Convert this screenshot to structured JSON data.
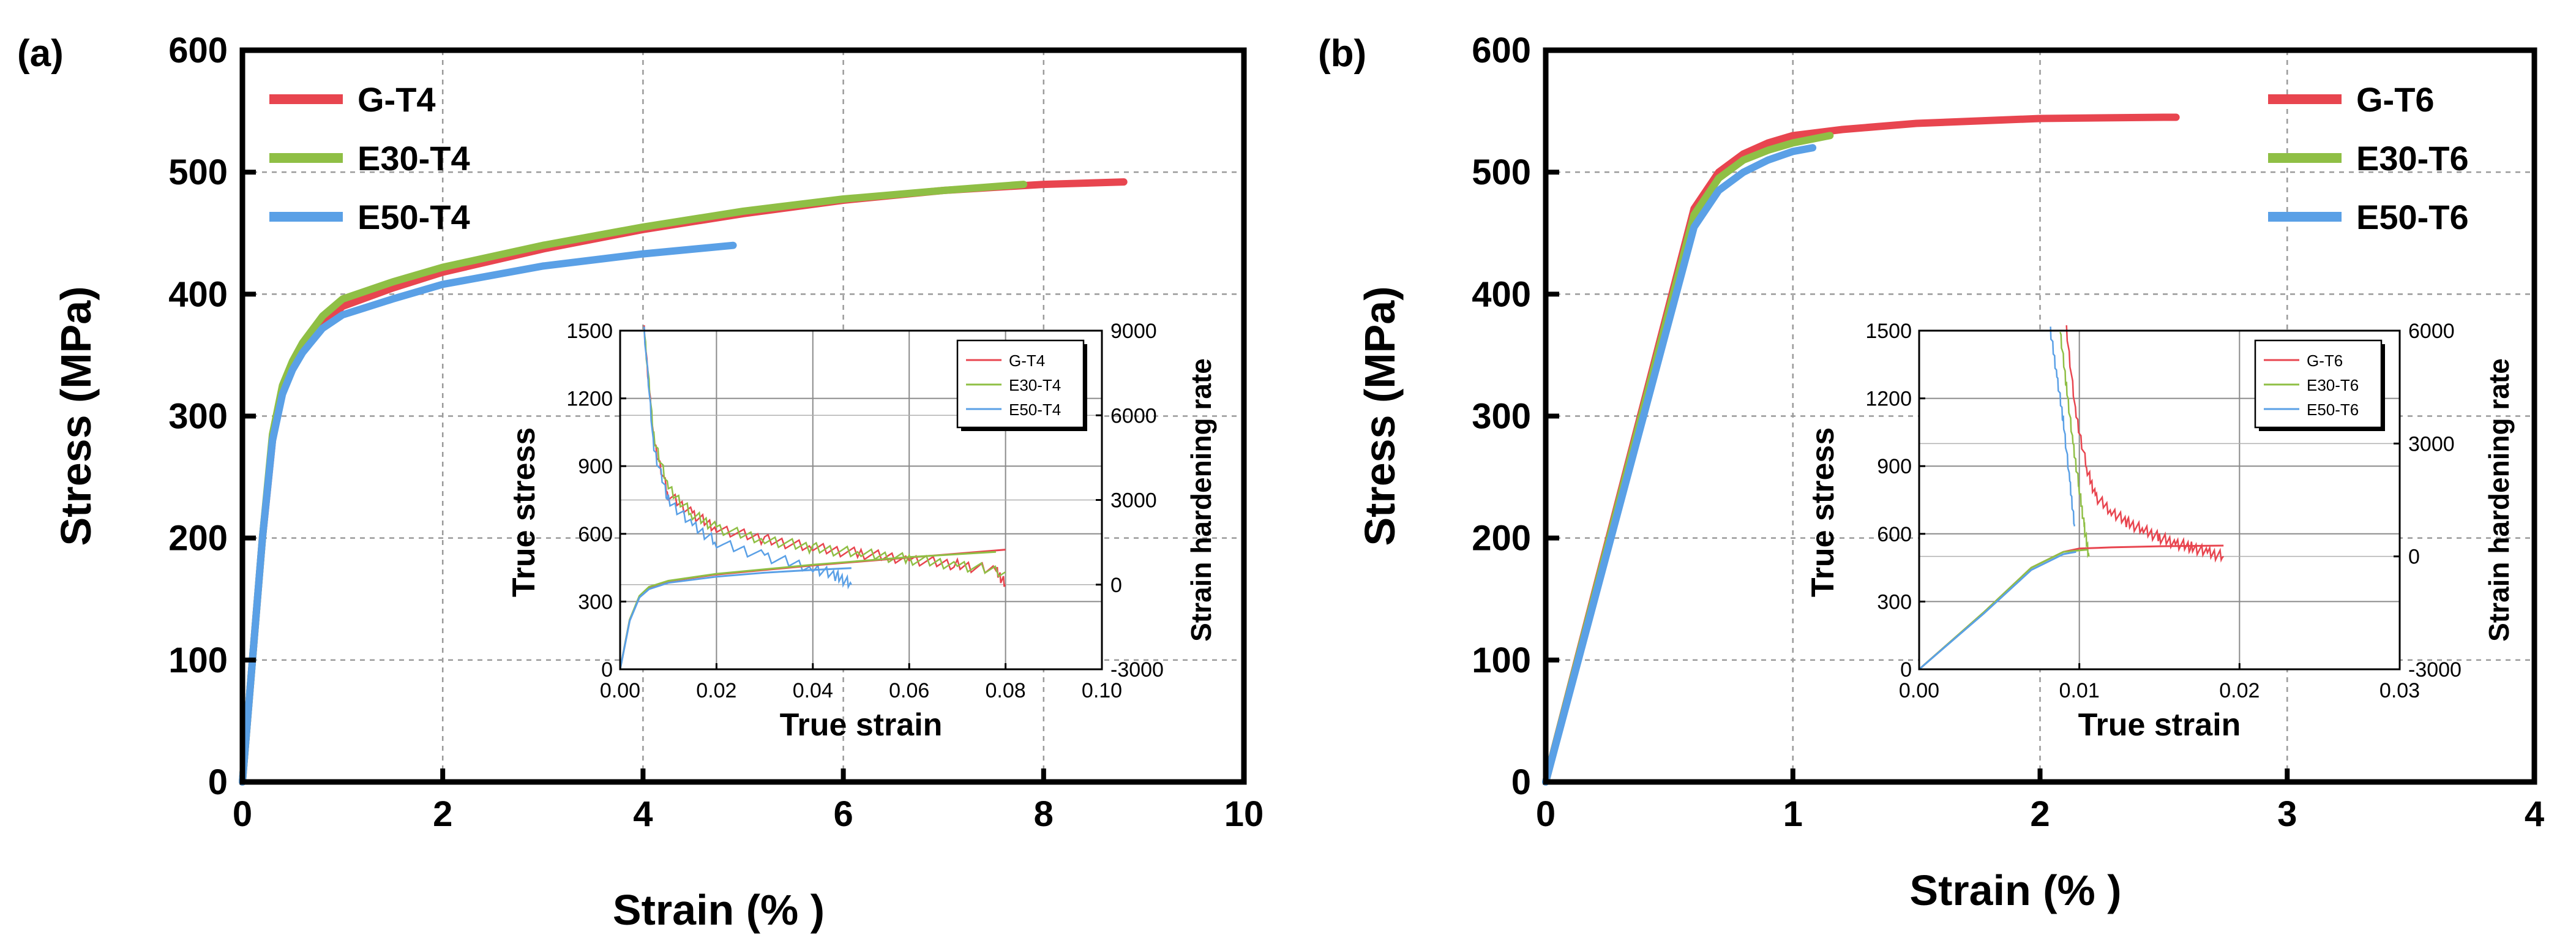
{
  "colors": {
    "red": "#e8454f",
    "green": "#8fbf45",
    "blue": "#5aa0e6"
  },
  "chart_data": [
    {
      "type": "line",
      "panel_label": "(a)",
      "xlabel": "Strain (% )",
      "ylabel": "Stress (MPa)",
      "xlim": [
        0,
        10
      ],
      "ylim": [
        0,
        600
      ],
      "xticks": [
        "0",
        "2",
        "4",
        "6",
        "8",
        "10"
      ],
      "yticks": [
        "0",
        "100",
        "200",
        "300",
        "400",
        "500",
        "600"
      ],
      "grid": true,
      "legend_position": "top-left",
      "series": [
        {
          "name": "G-T4",
          "color": "red",
          "x": [
            0,
            0.1,
            0.2,
            0.3,
            0.4,
            0.5,
            0.6,
            0.8,
            1.0,
            1.5,
            2,
            3,
            4,
            5,
            6,
            7,
            8,
            8.8
          ],
          "y": [
            0,
            100,
            200,
            280,
            320,
            340,
            355,
            375,
            390,
            405,
            418,
            437,
            453,
            466,
            477,
            485,
            490,
            492
          ]
        },
        {
          "name": "E30-T4",
          "color": "green",
          "x": [
            0,
            0.1,
            0.2,
            0.3,
            0.4,
            0.5,
            0.6,
            0.8,
            1.0,
            1.5,
            2,
            3,
            4,
            5,
            6,
            7,
            7.8
          ],
          "y": [
            0,
            100,
            200,
            285,
            325,
            345,
            360,
            382,
            396,
            410,
            422,
            440,
            455,
            468,
            478,
            485,
            490
          ]
        },
        {
          "name": "E50-T4",
          "color": "blue",
          "x": [
            0,
            0.1,
            0.2,
            0.3,
            0.4,
            0.5,
            0.6,
            0.8,
            1.0,
            1.5,
            2,
            3,
            4,
            4.9
          ],
          "y": [
            0,
            100,
            200,
            280,
            318,
            338,
            352,
            372,
            383,
            396,
            408,
            423,
            433,
            440
          ]
        }
      ],
      "inset": {
        "xlabel": "True strain",
        "ylabel": "True stress",
        "y2label": "Strain hardening rate",
        "xlim": [
          0,
          0.1
        ],
        "ylim": [
          0,
          1500
        ],
        "y2lim": [
          -3000,
          9000
        ],
        "xticks": [
          "0.00",
          "0.02",
          "0.04",
          "0.06",
          "0.08",
          "0.10"
        ],
        "yticks": [
          "0",
          "300",
          "600",
          "900",
          "1200",
          "1500"
        ],
        "y2ticks": [
          "-3000",
          "0",
          "3000",
          "6000",
          "9000"
        ],
        "legend": [
          "G-T4",
          "E30-T4",
          "E50-T4"
        ],
        "stress": [
          {
            "name": "G-T4",
            "x": [
              0,
              0.002,
              0.004,
              0.006,
              0.01,
              0.02,
              0.04,
              0.06,
              0.08
            ],
            "y": [
              0,
              220,
              320,
              360,
              390,
              420,
              460,
              495,
              530
            ]
          },
          {
            "name": "E30-T4",
            "x": [
              0,
              0.002,
              0.004,
              0.006,
              0.01,
              0.02,
              0.04,
              0.06,
              0.078
            ],
            "y": [
              0,
              220,
              325,
              365,
              392,
              423,
              463,
              497,
              520
            ]
          },
          {
            "name": "E50-T4",
            "x": [
              0,
              0.002,
              0.004,
              0.006,
              0.01,
              0.02,
              0.03,
              0.04,
              0.048
            ],
            "y": [
              0,
              215,
              318,
              355,
              383,
              410,
              428,
              440,
              448
            ]
          }
        ],
        "hardening": [
          {
            "name": "G-T4",
            "x": [
              0.005,
              0.007,
              0.01,
              0.015,
              0.02,
              0.03,
              0.04,
              0.05,
              0.06,
              0.07,
              0.078,
              0.08
            ],
            "y": [
              9000,
              5000,
              3200,
              2500,
              2000,
              1600,
              1300,
              1100,
              900,
              700,
              500,
              0
            ]
          },
          {
            "name": "E30-T4",
            "x": [
              0.005,
              0.007,
              0.01,
              0.015,
              0.02,
              0.03,
              0.04,
              0.05,
              0.06,
              0.07,
              0.08
            ],
            "y": [
              9000,
              5200,
              3400,
              2500,
              2000,
              1600,
              1300,
              1100,
              900,
              700,
              450
            ]
          },
          {
            "name": "E50-T4",
            "x": [
              0.005,
              0.007,
              0.01,
              0.015,
              0.02,
              0.03,
              0.04,
              0.045,
              0.048
            ],
            "y": [
              9000,
              4800,
              3000,
              2100,
              1500,
              1000,
              600,
              300,
              0
            ]
          }
        ]
      }
    },
    {
      "type": "line",
      "panel_label": "(b)",
      "xlabel": "Strain (% )",
      "ylabel": "Stress (MPa)",
      "xlim": [
        0,
        4
      ],
      "ylim": [
        0,
        600
      ],
      "xticks": [
        "0",
        "1",
        "2",
        "3",
        "4"
      ],
      "yticks": [
        "0",
        "100",
        "200",
        "300",
        "400",
        "500",
        "600"
      ],
      "grid": true,
      "legend_position": "top-right",
      "series": [
        {
          "name": "G-T6",
          "color": "red",
          "x": [
            0,
            0.6,
            0.7,
            0.8,
            0.9,
            1.0,
            1.2,
            1.5,
            2.0,
            2.5,
            2.55
          ],
          "y": [
            0,
            470,
            500,
            515,
            524,
            530,
            535,
            540,
            544,
            545,
            545
          ]
        },
        {
          "name": "E30-T6",
          "color": "green",
          "x": [
            0,
            0.6,
            0.7,
            0.8,
            0.9,
            1.0,
            1.1,
            1.15
          ],
          "y": [
            0,
            465,
            495,
            510,
            518,
            524,
            528,
            530
          ]
        },
        {
          "name": "E50-T6",
          "color": "blue",
          "x": [
            0,
            0.6,
            0.7,
            0.8,
            0.9,
            1.0,
            1.08
          ],
          "y": [
            0,
            455,
            485,
            500,
            510,
            517,
            520
          ]
        }
      ],
      "inset": {
        "xlabel": "True strain",
        "ylabel": "True stress",
        "y2label": "Strain hardening rate",
        "xlim": [
          0,
          0.03
        ],
        "ylim": [
          0,
          1500
        ],
        "y2lim": [
          -3000,
          6000
        ],
        "xticks": [
          "0.00",
          "0.01",
          "0.02",
          "0.03"
        ],
        "yticks": [
          "0",
          "300",
          "600",
          "900",
          "1200",
          "1500"
        ],
        "y2ticks": [
          "-3000",
          "0",
          "3000",
          "6000"
        ],
        "legend": [
          "G-T6",
          "E30-T6",
          "E50-T6"
        ],
        "stress": [
          {
            "name": "G-T6",
            "x": [
              0,
              0.004,
              0.007,
              0.009,
              0.01,
              0.012,
              0.015,
              0.019
            ],
            "y": [
              0,
              250,
              450,
              520,
              535,
              540,
              545,
              548
            ]
          },
          {
            "name": "E30-T6",
            "x": [
              0,
              0.004,
              0.007,
              0.009,
              0.0105
            ],
            "y": [
              0,
              250,
              450,
              520,
              530
            ]
          },
          {
            "name": "E50-T6",
            "x": [
              0,
              0.004,
              0.007,
              0.009,
              0.0098
            ],
            "y": [
              0,
              245,
              440,
              510,
              520
            ]
          }
        ],
        "hardening": [
          {
            "name": "G-T6",
            "x": [
              0.0092,
              0.0098,
              0.0105,
              0.011,
              0.012,
              0.013,
              0.014,
              0.015,
              0.016,
              0.017,
              0.018,
              0.019
            ],
            "y": [
              6000,
              3700,
              2300,
              1600,
              1200,
              900,
              700,
              500,
              350,
              250,
              100,
              0
            ]
          },
          {
            "name": "E30-T6",
            "x": [
              0.0088,
              0.0092,
              0.0096,
              0.01,
              0.0103,
              0.0106
            ],
            "y": [
              6000,
              4500,
              3000,
              1800,
              800,
              0
            ]
          },
          {
            "name": "E50-T6",
            "x": [
              0.0082,
              0.0086,
              0.009,
              0.0094,
              0.0097
            ],
            "y": [
              6000,
              4800,
              3600,
              2000,
              800
            ]
          }
        ]
      }
    }
  ]
}
